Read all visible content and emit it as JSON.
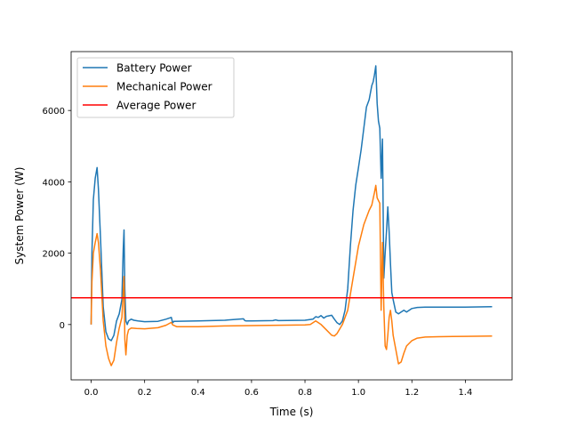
{
  "chart_data": {
    "type": "line",
    "title": "",
    "xlabel": "Time (s)",
    "ylabel": "System Power (W)",
    "xlim": [
      -0.075,
      1.575
    ],
    "ylim": [
      -1550,
      7650
    ],
    "xticks": [
      0.0,
      0.2,
      0.4,
      0.6,
      0.8,
      1.0,
      1.2,
      1.4
    ],
    "xtick_labels": [
      "0.0",
      "0.2",
      "0.4",
      "0.6",
      "0.8",
      "1.0",
      "1.2",
      "1.4"
    ],
    "yticks": [
      0,
      2000,
      4000,
      6000
    ],
    "ytick_labels": [
      "0",
      "2000",
      "4000",
      "6000"
    ],
    "grid": false,
    "legend_position": "upper-left",
    "series": [
      {
        "name": "Battery Power",
        "color": "#1f77b4",
        "x": [
          0.0,
          0.003,
          0.008,
          0.015,
          0.022,
          0.027,
          0.035,
          0.045,
          0.055,
          0.065,
          0.075,
          0.085,
          0.095,
          0.105,
          0.115,
          0.12,
          0.123,
          0.126,
          0.13,
          0.135,
          0.14,
          0.15,
          0.16,
          0.175,
          0.2,
          0.25,
          0.28,
          0.3,
          0.305,
          0.31,
          0.4,
          0.5,
          0.57,
          0.575,
          0.58,
          0.6,
          0.68,
          0.69,
          0.7,
          0.8,
          0.83,
          0.84,
          0.85,
          0.86,
          0.87,
          0.88,
          0.9,
          0.91,
          0.92,
          0.93,
          0.94,
          0.95,
          0.96,
          0.97,
          0.98,
          0.99,
          1.0,
          1.01,
          1.02,
          1.03,
          1.04,
          1.05,
          1.055,
          1.06,
          1.065,
          1.07,
          1.075,
          1.08,
          1.085,
          1.09,
          1.095,
          1.1,
          1.105,
          1.11,
          1.115,
          1.12,
          1.125,
          1.13,
          1.14,
          1.15,
          1.16,
          1.17,
          1.18,
          1.19,
          1.2,
          1.22,
          1.25,
          1.3,
          1.4,
          1.5
        ],
        "y": [
          0,
          2000,
          3500,
          4100,
          4400,
          3800,
          2400,
          500,
          -200,
          -400,
          -450,
          -300,
          100,
          300,
          700,
          2100,
          2650,
          1000,
          100,
          0,
          100,
          150,
          120,
          100,
          80,
          90,
          150,
          200,
          50,
          90,
          100,
          120,
          160,
          110,
          100,
          100,
          110,
          130,
          110,
          120,
          150,
          220,
          200,
          250,
          180,
          230,
          260,
          150,
          50,
          0,
          100,
          400,
          1000,
          2200,
          3200,
          3900,
          4400,
          4900,
          5500,
          6100,
          6300,
          6700,
          6800,
          7000,
          7250,
          6200,
          5700,
          5500,
          4100,
          5200,
          1300,
          2000,
          2600,
          3300,
          2600,
          1700,
          900,
          700,
          350,
          300,
          350,
          400,
          350,
          400,
          450,
          480,
          490,
          490,
          490,
          500
        ]
      },
      {
        "name": "Mechanical Power",
        "color": "#ff7f0e",
        "x": [
          0.0,
          0.003,
          0.008,
          0.015,
          0.022,
          0.027,
          0.035,
          0.045,
          0.055,
          0.065,
          0.075,
          0.085,
          0.095,
          0.105,
          0.115,
          0.12,
          0.123,
          0.126,
          0.13,
          0.135,
          0.14,
          0.15,
          0.17,
          0.2,
          0.25,
          0.28,
          0.3,
          0.305,
          0.32,
          0.35,
          0.4,
          0.5,
          0.6,
          0.7,
          0.8,
          0.82,
          0.84,
          0.85,
          0.86,
          0.88,
          0.9,
          0.91,
          0.92,
          0.94,
          0.96,
          0.98,
          1.0,
          1.02,
          1.04,
          1.05,
          1.06,
          1.065,
          1.07,
          1.08,
          1.085,
          1.09,
          1.095,
          1.1,
          1.105,
          1.11,
          1.115,
          1.12,
          1.125,
          1.13,
          1.14,
          1.15,
          1.16,
          1.17,
          1.18,
          1.2,
          1.22,
          1.25,
          1.3,
          1.4,
          1.5
        ],
        "y": [
          0,
          1200,
          2000,
          2300,
          2550,
          2300,
          1500,
          100,
          -600,
          -950,
          -1150,
          -1000,
          -500,
          -100,
          200,
          900,
          1350,
          -400,
          -850,
          -300,
          -150,
          -100,
          -110,
          -120,
          -90,
          -20,
          60,
          -10,
          -60,
          -60,
          -60,
          -40,
          -30,
          -20,
          -10,
          0,
          100,
          50,
          0,
          -150,
          -300,
          -320,
          -250,
          0,
          400,
          1300,
          2200,
          2800,
          3200,
          3350,
          3700,
          3900,
          3550,
          3400,
          400,
          2300,
          500,
          -600,
          -700,
          -300,
          200,
          400,
          100,
          -300,
          -700,
          -1100,
          -1050,
          -800,
          -600,
          -450,
          -380,
          -350,
          -340,
          -330,
          -320
        ]
      },
      {
        "name": "Average Power",
        "color": "#ff0000",
        "horizontal_line": 750
      }
    ]
  }
}
